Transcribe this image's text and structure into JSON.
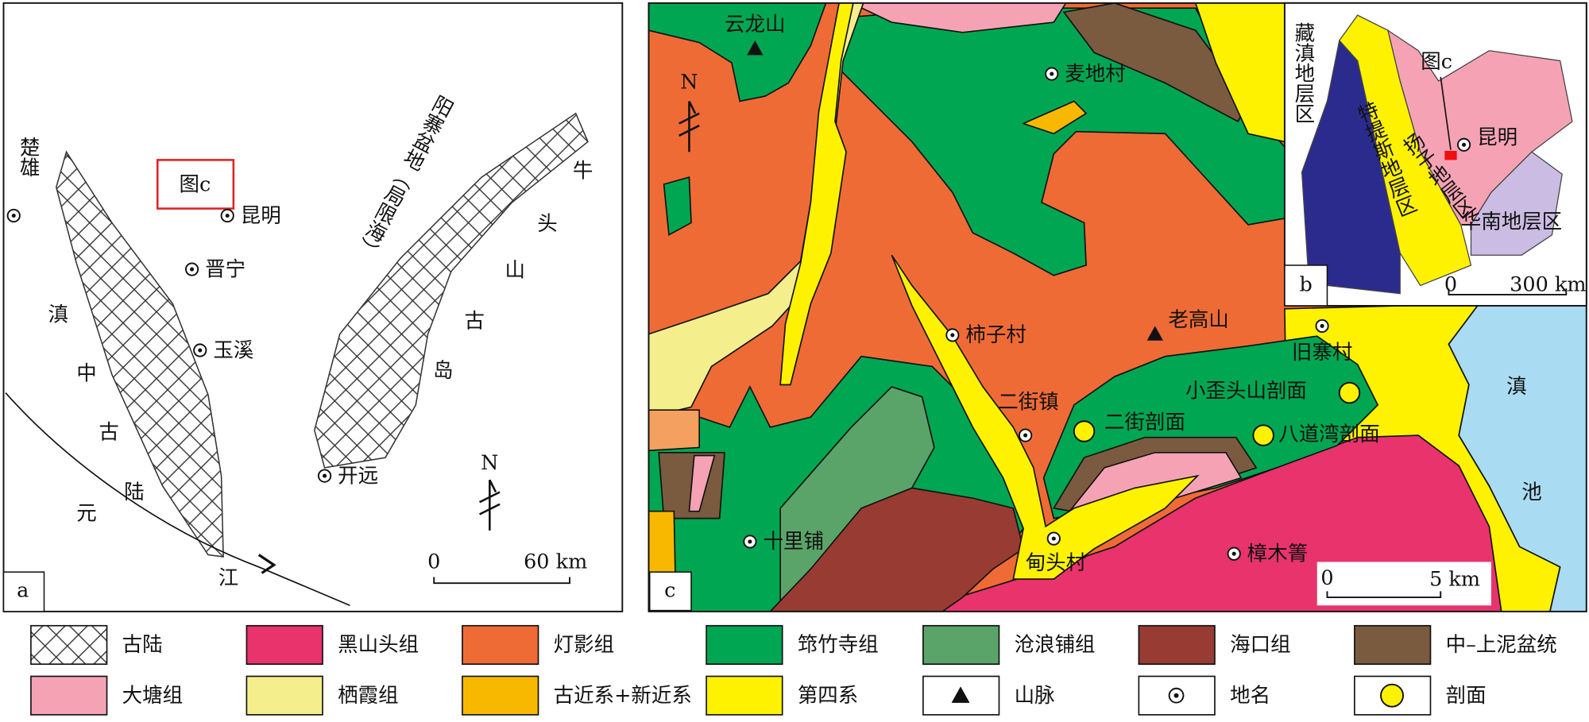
{
  "panel_a": {
    "label": "a",
    "box_label": "图c",
    "west_label": "楚雄",
    "places": [
      "昆明",
      "晋宁",
      "玉溪",
      "开远"
    ],
    "ancient_land": [
      "滇",
      "中",
      "古",
      "陆"
    ],
    "river": [
      "元",
      "江"
    ],
    "basin": "阳寨盆地（局限海）",
    "island": [
      "牛",
      "头",
      "山",
      "古",
      "岛"
    ],
    "north": "N",
    "scale": [
      "0",
      "60 km"
    ]
  },
  "panel_c": {
    "label": "c",
    "mountains": [
      "云龙山",
      "老高山"
    ],
    "places": [
      "麦地村",
      "柿子村",
      "旧寨村",
      "二街镇",
      "十里铺",
      "甸头村",
      "樟木箐"
    ],
    "sections": [
      "小歪头山剖面",
      "二街剖面",
      "八道湾剖面"
    ],
    "lake": [
      "滇",
      "池"
    ],
    "north": "N",
    "scale": [
      "0",
      "5 km"
    ]
  },
  "panel_b": {
    "label": "b",
    "regions": [
      "藏滇地层区",
      "特提斯地层区",
      "扬子地层区",
      "华南地层区"
    ],
    "box_label": "图c",
    "place": "昆明",
    "scale": [
      "0",
      "300 km"
    ]
  },
  "legend": [
    "古陆",
    "黑山头组",
    "灯影组",
    "筇竹寺组",
    "沧浪铺组",
    "海口组",
    "中–上泥盆统",
    "大塘组",
    "栖霞组",
    "古近系+新近系",
    "第四系",
    "山脉",
    "地名",
    "剖面"
  ]
}
